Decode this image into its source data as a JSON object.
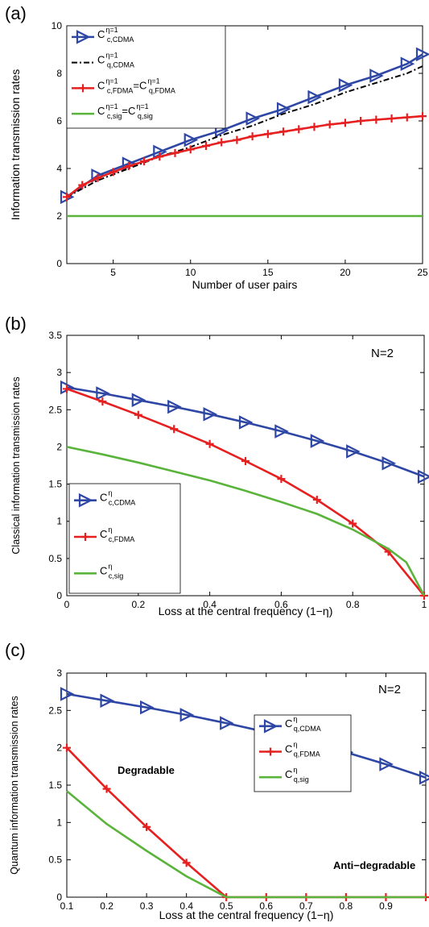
{
  "chart_data": [
    {
      "type": "line",
      "panel_label": "(a)",
      "xlabel": "Number of user pairs",
      "ylabel": "Information transmission rates",
      "xlim": [
        2,
        25
      ],
      "ylim": [
        0,
        10
      ],
      "xticks": [
        5,
        10,
        15,
        20,
        25
      ],
      "yticks": [
        0,
        2,
        4,
        6,
        8,
        10
      ],
      "legend_position": "top-left",
      "series": [
        {
          "key": "c_cdma",
          "name": "C_c,CDMA^η=1",
          "base": "C",
          "sub": "c,CDMA",
          "sup": "η=1",
          "color": "#2e46a4",
          "style": "solid",
          "marker": "triangle",
          "x": [
            2,
            4,
            6,
            8,
            10,
            12,
            14,
            16,
            18,
            20,
            22,
            24,
            25
          ],
          "y": [
            2.8,
            3.7,
            4.2,
            4.7,
            5.2,
            5.6,
            6.1,
            6.5,
            7.0,
            7.5,
            7.9,
            8.4,
            8.8
          ]
        },
        {
          "key": "q_cdma",
          "name": "C_q,CDMA^η=1",
          "base": "C",
          "sub": "q,CDMA",
          "sup": "η=1",
          "color": "#000000",
          "style": "dashdot",
          "marker": "none",
          "x": [
            2,
            4,
            6,
            8,
            10,
            12,
            14,
            16,
            18,
            20,
            22,
            24,
            25
          ],
          "y": [
            2.8,
            3.5,
            4.0,
            4.5,
            4.9,
            5.4,
            5.8,
            6.3,
            6.7,
            7.2,
            7.6,
            8.0,
            8.3
          ]
        },
        {
          "key": "fdma",
          "name": "C_c,FDMA^η=1=C_q,FDMA^η=1",
          "base": "C",
          "sub": "c,FDMA",
          "sup": "η=1",
          "base2": "C",
          "sub2": "q,FDMA",
          "sup2": "η=1",
          "color": "#e62020",
          "style": "solid",
          "marker": "plus",
          "x": [
            2,
            3,
            4,
            5,
            6,
            7,
            8,
            9,
            10,
            11,
            12,
            13,
            14,
            15,
            16,
            17,
            18,
            19,
            20,
            21,
            22,
            23,
            24,
            25
          ],
          "y": [
            2.8,
            3.3,
            3.6,
            3.85,
            4.1,
            4.3,
            4.5,
            4.65,
            4.8,
            4.95,
            5.1,
            5.2,
            5.35,
            5.45,
            5.55,
            5.65,
            5.75,
            5.85,
            5.92,
            6.0,
            6.05,
            6.1,
            6.15,
            6.2
          ]
        },
        {
          "key": "sig",
          "name": "C_c,sig^η=1=C_q,sig^η=1",
          "base": "C",
          "sub": "c,sig",
          "sup": "η=1",
          "base2": "C",
          "sub2": "q,sig",
          "sup2": "η=1",
          "color": "#5ab43c",
          "style": "solid",
          "marker": "none",
          "x": [
            2,
            25
          ],
          "y": [
            2.0,
            2.0
          ]
        }
      ]
    },
    {
      "type": "line",
      "panel_label": "(b)",
      "annotation": "N=2",
      "xlabel": "Loss at the central frequency (1−η)",
      "ylabel": "Classical information transmission rates",
      "xlim": [
        0,
        1
      ],
      "ylim": [
        0,
        3.5
      ],
      "xticks": [
        0,
        0.2,
        0.4,
        0.6,
        0.8,
        1
      ],
      "xtick_labels": [
        "0",
        "0.2",
        "0.4",
        "0.6",
        "0.8",
        "1"
      ],
      "yticks": [
        0,
        0.5,
        1,
        1.5,
        2,
        2.5,
        3,
        3.5
      ],
      "ytick_labels": [
        "0",
        "0.5",
        "1",
        "1.5",
        "2",
        "2.5",
        "3",
        "3.5"
      ],
      "legend_position": "bottom-left",
      "series": [
        {
          "key": "c_cdma",
          "name": "C_c,CDMA^η",
          "base": "C",
          "sub": "c,CDMA",
          "sup": "η",
          "color": "#2e46a4",
          "style": "solid",
          "marker": "triangle",
          "x": [
            0,
            0.1,
            0.2,
            0.3,
            0.4,
            0.5,
            0.6,
            0.7,
            0.8,
            0.9,
            1.0
          ],
          "y": [
            2.8,
            2.72,
            2.63,
            2.54,
            2.44,
            2.33,
            2.21,
            2.08,
            1.94,
            1.78,
            1.6
          ]
        },
        {
          "key": "c_fdma",
          "name": "C_c,FDMA^η",
          "base": "C",
          "sub": "c,FDMA",
          "sup": "η",
          "color": "#e62020",
          "style": "solid",
          "marker": "plus",
          "x": [
            0,
            0.1,
            0.2,
            0.3,
            0.4,
            0.5,
            0.6,
            0.7,
            0.8,
            0.9,
            1.0
          ],
          "y": [
            2.78,
            2.61,
            2.43,
            2.24,
            2.04,
            1.81,
            1.57,
            1.29,
            0.97,
            0.59,
            0.0
          ]
        },
        {
          "key": "c_sig",
          "name": "C_c,sig^η",
          "base": "C",
          "sub": "c,sig",
          "sup": "η",
          "color": "#5ab43c",
          "style": "solid",
          "marker": "none",
          "x": [
            0,
            0.1,
            0.2,
            0.3,
            0.4,
            0.5,
            0.6,
            0.7,
            0.8,
            0.9,
            0.95,
            1.0
          ],
          "y": [
            2.0,
            1.9,
            1.79,
            1.67,
            1.55,
            1.41,
            1.26,
            1.1,
            0.89,
            0.63,
            0.45,
            0.0
          ]
        }
      ]
    },
    {
      "type": "line",
      "panel_label": "(c)",
      "annotation": "N=2",
      "region_labels": [
        "Degradable",
        "Anti−degradable"
      ],
      "xlabel": "Loss at the central frequency (1−η)",
      "ylabel": "Quantum information transmission rates",
      "xlim": [
        0.1,
        1
      ],
      "ylim": [
        0,
        3
      ],
      "xticks": [
        0.1,
        0.2,
        0.3,
        0.4,
        0.5,
        0.6,
        0.7,
        0.8,
        0.9
      ],
      "xtick_labels": [
        "0.1",
        "0.2",
        "0.3",
        "0.4",
        "0.5",
        "0.6",
        "0.7",
        "0.8",
        "0.9"
      ],
      "yticks": [
        0,
        0.5,
        1,
        1.5,
        2,
        2.5,
        3
      ],
      "ytick_labels": [
        "0",
        "0.5",
        "1",
        "1.5",
        "2",
        "2.5",
        "3"
      ],
      "legend_position": "center-right",
      "series": [
        {
          "key": "q_cdma",
          "name": "C_q,CDMA^η",
          "base": "C",
          "sub": "q,CDMA",
          "sup": "η",
          "color": "#2e46a4",
          "style": "solid",
          "marker": "triangle",
          "x": [
            0.1,
            0.2,
            0.3,
            0.4,
            0.5,
            0.6,
            0.7,
            0.8,
            0.9,
            1.0
          ],
          "y": [
            2.72,
            2.63,
            2.54,
            2.44,
            2.33,
            2.21,
            2.08,
            1.94,
            1.78,
            1.6
          ]
        },
        {
          "key": "q_fdma",
          "name": "C_q,FDMA^η",
          "base": "C",
          "sub": "q,FDMA",
          "sup": "η",
          "color": "#e62020",
          "style": "solid",
          "marker": "plus",
          "x": [
            0.1,
            0.2,
            0.3,
            0.4,
            0.5,
            0.6,
            0.7,
            0.8,
            0.9,
            1.0
          ],
          "y": [
            2.0,
            1.45,
            0.94,
            0.46,
            0.0,
            0.0,
            0.0,
            0.0,
            0.0,
            0.0
          ]
        },
        {
          "key": "q_sig",
          "name": "C_q,sig^η",
          "base": "C",
          "sub": "q,sig",
          "sup": "η",
          "color": "#5ab43c",
          "style": "solid",
          "marker": "none",
          "x": [
            0.1,
            0.2,
            0.3,
            0.4,
            0.5,
            0.6,
            1.0
          ],
          "y": [
            1.42,
            0.98,
            0.62,
            0.28,
            0.0,
            0.0,
            0.0
          ]
        }
      ]
    }
  ]
}
